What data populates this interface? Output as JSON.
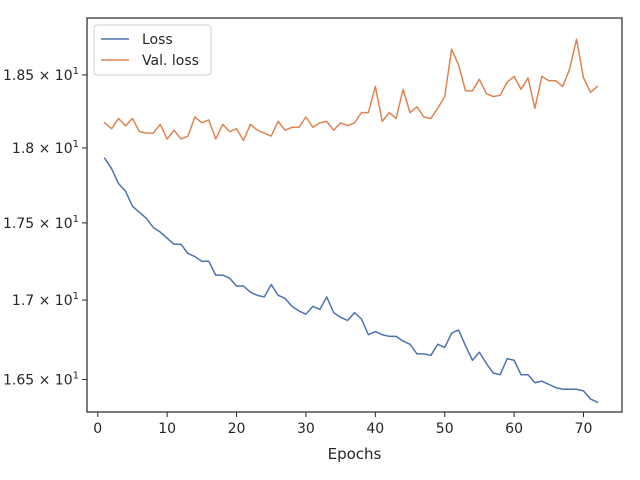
{
  "chart_data": {
    "type": "line",
    "title": "",
    "xlabel": "Epochs",
    "ylabel": "",
    "xlim": [
      -1.55,
      75.55
    ],
    "ylim": [
      16.3,
      18.9
    ],
    "yscale": "log",
    "grid": false,
    "legend_position": "top-left",
    "x_ticks": [
      0,
      10,
      20,
      30,
      40,
      50,
      60,
      70
    ],
    "x_tick_labels": [
      "0",
      "10",
      "20",
      "30",
      "40",
      "50",
      "60",
      "70"
    ],
    "y_ticks": [
      16.5,
      17.0,
      17.5,
      18.0,
      18.5
    ],
    "y_tick_labels": [
      {
        "mantissa": "1.65",
        "exp": "1"
      },
      {
        "mantissa": "1.7",
        "exp": "1"
      },
      {
        "mantissa": "1.75",
        "exp": "1"
      },
      {
        "mantissa": "1.8",
        "exp": "1"
      },
      {
        "mantissa": "1.85",
        "exp": "1"
      }
    ],
    "times_symbol": "×",
    "tick_base": "10",
    "x": [
      1,
      2,
      3,
      4,
      5,
      6,
      7,
      8,
      9,
      10,
      11,
      12,
      13,
      14,
      15,
      16,
      17,
      18,
      19,
      20,
      21,
      22,
      23,
      24,
      25,
      26,
      27,
      28,
      29,
      30,
      31,
      32,
      33,
      34,
      35,
      36,
      37,
      38,
      39,
      40,
      41,
      42,
      43,
      44,
      45,
      46,
      47,
      48,
      49,
      50,
      51,
      52,
      53,
      54,
      55,
      56,
      57,
      58,
      59,
      60,
      61,
      62,
      63,
      64,
      65,
      66,
      67,
      68,
      69,
      70,
      71,
      72
    ],
    "series": [
      {
        "name": "Loss",
        "color": "#4c72b0",
        "values": [
          17.93,
          17.86,
          17.76,
          17.71,
          17.61,
          17.57,
          17.53,
          17.47,
          17.44,
          17.4,
          17.36,
          17.36,
          17.3,
          17.28,
          17.25,
          17.25,
          17.16,
          17.16,
          17.14,
          17.09,
          17.09,
          17.05,
          17.03,
          17.02,
          17.1,
          17.03,
          17.01,
          16.96,
          16.93,
          16.91,
          16.96,
          16.94,
          17.02,
          16.92,
          16.89,
          16.87,
          16.92,
          16.88,
          16.78,
          16.8,
          16.78,
          16.77,
          16.77,
          16.74,
          16.72,
          16.66,
          16.66,
          16.65,
          16.72,
          16.7,
          16.79,
          16.81,
          16.71,
          16.62,
          16.67,
          16.6,
          16.54,
          16.53,
          16.63,
          16.62,
          16.53,
          16.53,
          16.48,
          16.49,
          16.47,
          16.45,
          16.44,
          16.44,
          16.44,
          16.43,
          16.38,
          16.36
        ]
      },
      {
        "name": "Val. loss",
        "color": "#dd8452",
        "values": [
          18.17,
          18.13,
          18.2,
          18.15,
          18.2,
          18.11,
          18.1,
          18.1,
          18.16,
          18.06,
          18.12,
          18.06,
          18.08,
          18.21,
          18.17,
          18.19,
          18.06,
          18.16,
          18.11,
          18.13,
          18.05,
          18.16,
          18.12,
          18.1,
          18.08,
          18.18,
          18.12,
          18.14,
          18.14,
          18.21,
          18.14,
          18.17,
          18.18,
          18.12,
          18.17,
          18.15,
          18.17,
          18.24,
          18.24,
          18.42,
          18.18,
          18.24,
          18.2,
          18.4,
          18.24,
          18.28,
          18.21,
          18.2,
          18.27,
          18.35,
          18.68,
          18.57,
          18.39,
          18.39,
          18.47,
          18.37,
          18.35,
          18.36,
          18.45,
          18.49,
          18.4,
          18.48,
          18.27,
          18.49,
          18.46,
          18.46,
          18.42,
          18.54,
          18.75,
          18.48,
          18.38,
          18.42
        ]
      }
    ]
  }
}
